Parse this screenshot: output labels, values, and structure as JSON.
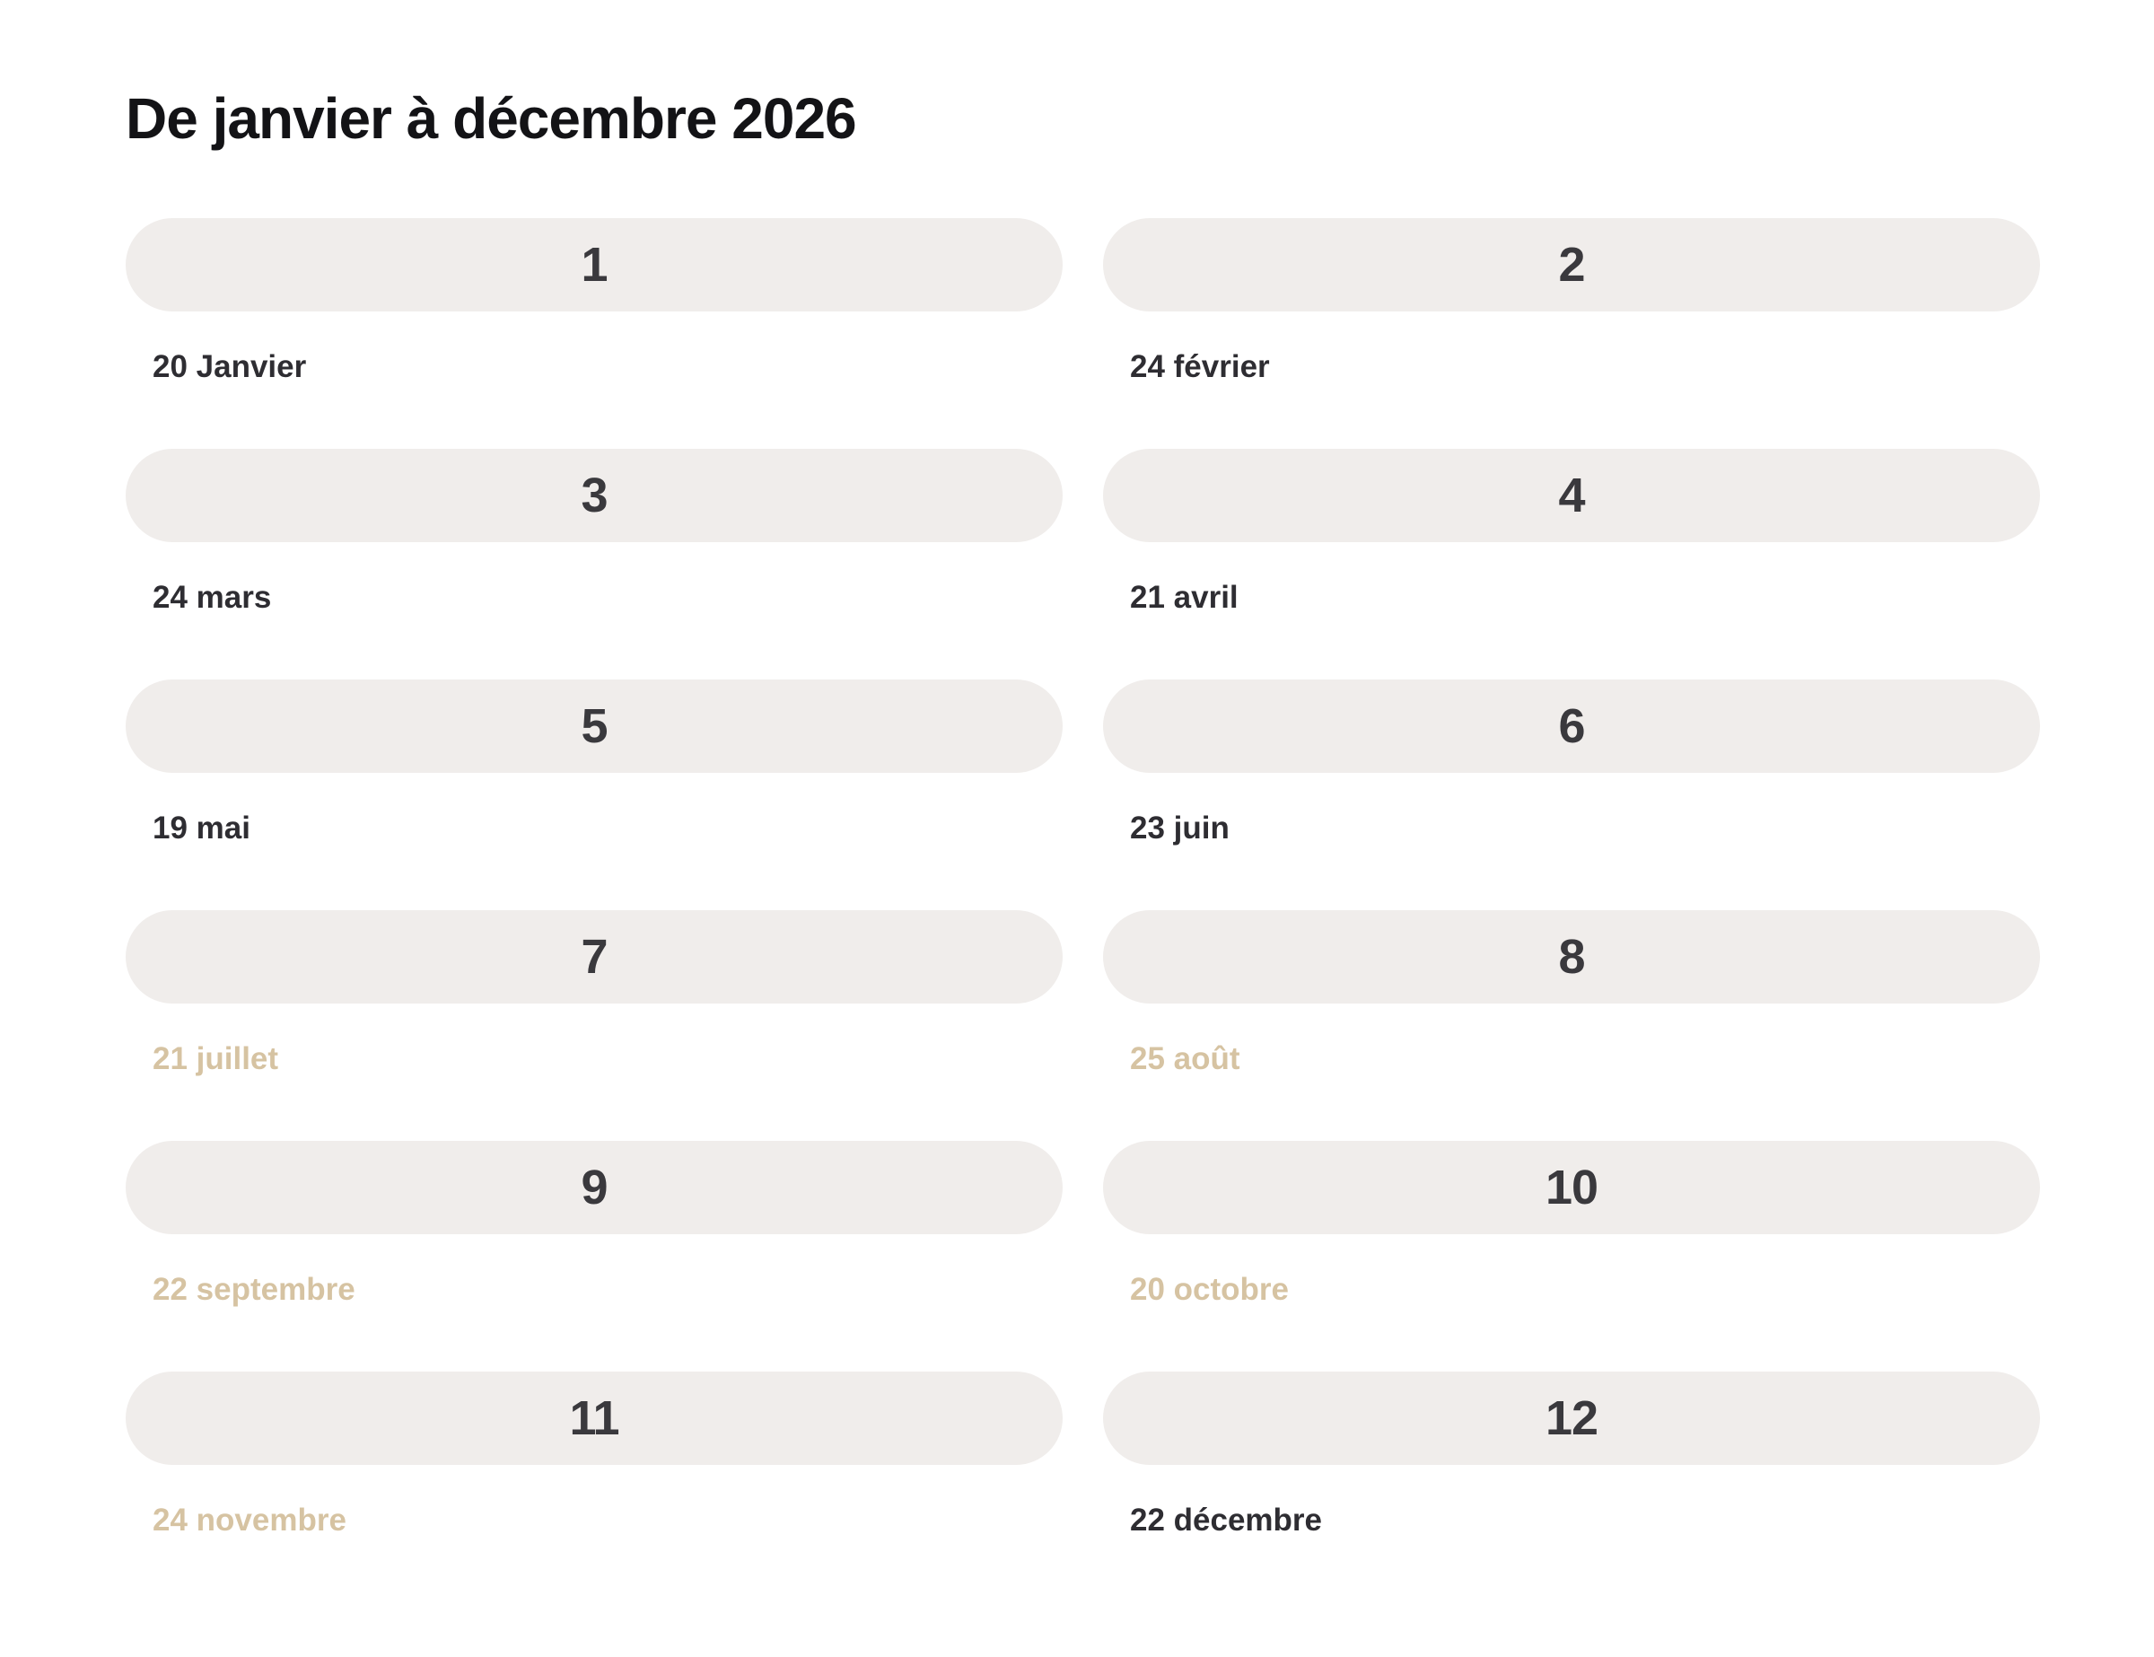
{
  "page": {
    "title": "De janvier à décembre 2026"
  },
  "colors": {
    "page_bg": "#ffffff",
    "pill_bg": "#f0edeb",
    "pill_number": "#3a393d",
    "title": "#131316",
    "date_dark": "#2e2d32",
    "date_muted": "#d6c3a2"
  },
  "periods": [
    {
      "number": "1",
      "date": "20 Janvier",
      "muted": false
    },
    {
      "number": "2",
      "date": "24 février",
      "muted": false
    },
    {
      "number": "3",
      "date": "24 mars",
      "muted": false
    },
    {
      "number": "4",
      "date": "21 avril",
      "muted": false
    },
    {
      "number": "5",
      "date": "19 mai",
      "muted": false
    },
    {
      "number": "6",
      "date": "23 juin",
      "muted": false
    },
    {
      "number": "7",
      "date": "21 juillet",
      "muted": true
    },
    {
      "number": "8",
      "date": "25 août",
      "muted": true
    },
    {
      "number": "9",
      "date": "22 septembre",
      "muted": true
    },
    {
      "number": "10",
      "date": "20 octobre",
      "muted": true
    },
    {
      "number": "11",
      "date": "24 novembre",
      "muted": true
    },
    {
      "number": "12",
      "date": "22 décembre",
      "muted": false
    }
  ]
}
